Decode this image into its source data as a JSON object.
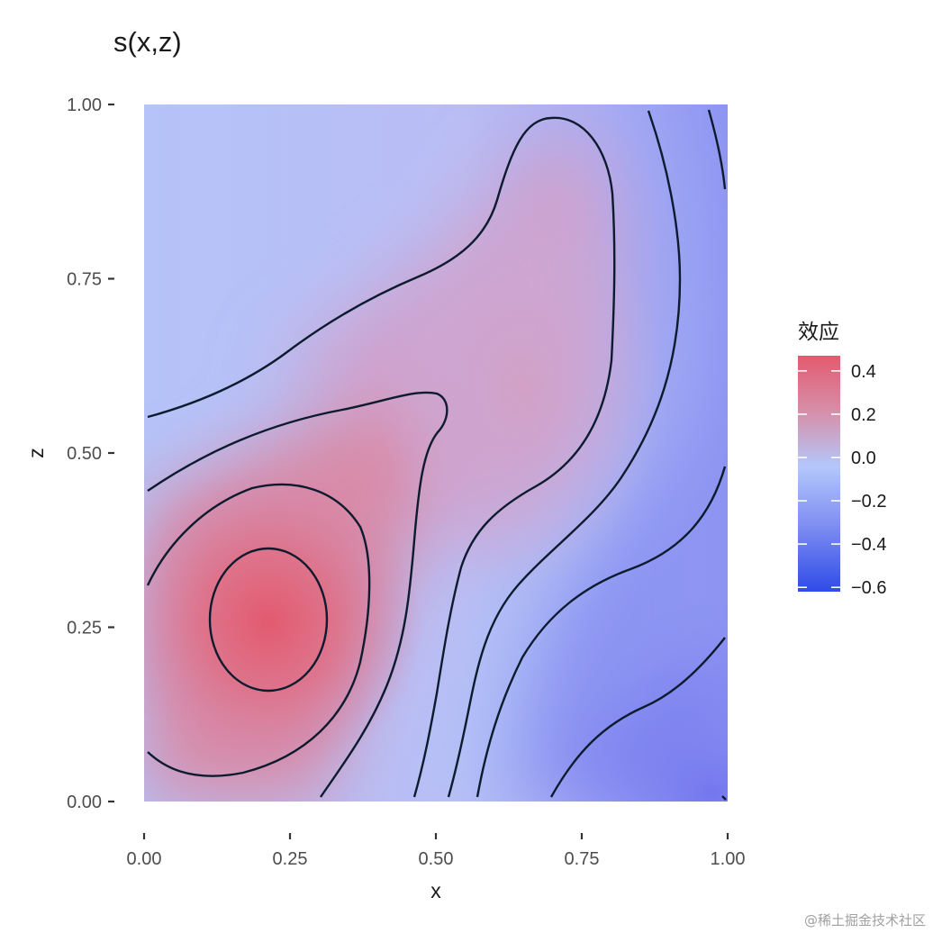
{
  "chart_data": {
    "type": "heatmap",
    "title": "s(x,z)",
    "xlabel": "x",
    "ylabel": "z",
    "xlim": [
      0,
      1
    ],
    "ylim": [
      0,
      1
    ],
    "x_ticks": [
      "0.00",
      "0.25",
      "0.50",
      "0.75",
      "1.00"
    ],
    "x_tick_values": [
      0,
      0.25,
      0.5,
      0.75,
      1.0
    ],
    "y_ticks": [
      "0.00",
      "0.25",
      "0.50",
      "0.75",
      "1.00"
    ],
    "y_tick_values": [
      0,
      0.25,
      0.5,
      0.75,
      1.0
    ],
    "grid": false,
    "legend": {
      "title": "效应",
      "position": "right",
      "labels": [
        "0.4",
        "0.2",
        "0.0",
        "−0.2",
        "−0.4",
        "−0.6"
      ],
      "values": [
        0.4,
        0.2,
        0.0,
        -0.2,
        -0.4,
        -0.6
      ],
      "range": [
        -0.62,
        0.47
      ],
      "colors": {
        "low": "#2f4be8",
        "mid": "#b3c7fb",
        "high": "#e35a6e"
      }
    },
    "contour_levels": [
      -0.5,
      -0.4,
      -0.3,
      -0.2,
      -0.1,
      0.0,
      0.1,
      0.2,
      0.3,
      0.4
    ],
    "surface_samples": [
      {
        "x": 0.21,
        "z": 0.26,
        "value": 0.43
      },
      {
        "x": 0.0,
        "z": 0.0,
        "value": 0.22
      },
      {
        "x": 0.05,
        "z": 0.8,
        "value": -0.12
      },
      {
        "x": 0.65,
        "z": 0.75,
        "value": 0.05
      },
      {
        "x": 0.5,
        "z": 0.1,
        "value": -0.15
      },
      {
        "x": 1.0,
        "z": 0.0,
        "value": -0.55
      },
      {
        "x": 1.0,
        "z": 1.0,
        "value": -0.45
      }
    ]
  },
  "watermark": "@稀土掘金技术社区"
}
